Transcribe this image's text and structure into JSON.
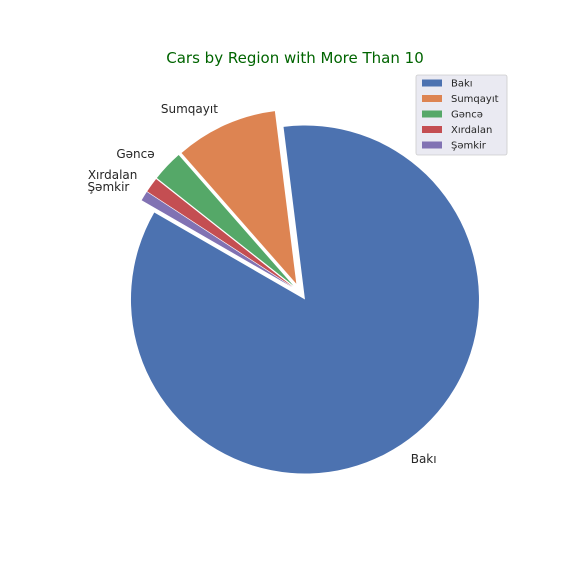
{
  "chart_data": {
    "type": "pie",
    "title": "Cars by Region with More Than 10",
    "title_color": "#006400",
    "categories": [
      "Bakı",
      "Sumqayıt",
      "Gəncə",
      "Xırdalan",
      "Şəmkir"
    ],
    "values": [
      85.3,
      9.5,
      2.9,
      1.4,
      0.9
    ],
    "colors": [
      "#4c72b0",
      "#dd8452",
      "#55a868",
      "#c44e52",
      "#8172b3"
    ],
    "start_angle_deg": 150,
    "direction": "counterclockwise",
    "exploded": true,
    "legend": {
      "position": "upper-right",
      "entries": [
        "Bakı",
        "Sumqayıt",
        "Gəncə",
        "Xırdalan",
        "Şəmkir"
      ]
    }
  }
}
